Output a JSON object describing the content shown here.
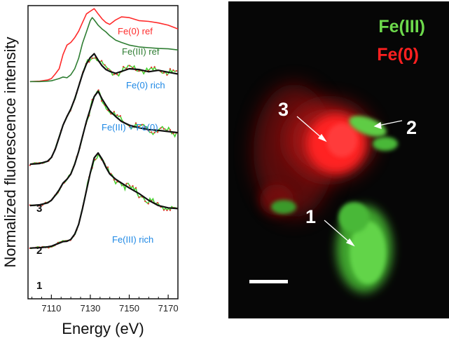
{
  "chart_data": [
    {
      "type": "line",
      "xlabel": "Energy (eV)",
      "ylabel": "Normalized fluorescence intensity",
      "xlim": [
        7098,
        7175
      ],
      "x_ticks": [
        7110,
        7130,
        7150,
        7170
      ],
      "x_tick_labels": [
        "7110",
        "7130",
        "7150",
        "7170"
      ],
      "ylim": [
        0,
        7.8
      ],
      "grid": false,
      "series": [
        {
          "name": "Fe(0) ref",
          "color": "#ff2a2a",
          "x": [
            7099,
            7104,
            7108,
            7110,
            7112,
            7114,
            7116,
            7118,
            7120,
            7122,
            7124,
            7126,
            7128,
            7130,
            7132,
            7134,
            7136,
            7138,
            7140,
            7143,
            7146,
            7150,
            7155,
            7160,
            7165,
            7170,
            7175
          ],
          "y": [
            5.78,
            5.79,
            5.82,
            5.86,
            5.98,
            6.12,
            6.5,
            6.75,
            6.82,
            6.95,
            7.12,
            7.35,
            7.58,
            7.65,
            7.72,
            7.58,
            7.45,
            7.35,
            7.3,
            7.42,
            7.5,
            7.48,
            7.4,
            7.38,
            7.34,
            7.28,
            7.18
          ]
        },
        {
          "name": "Fe(III) ref",
          "color": "#2e7d32",
          "x": [
            7099,
            7104,
            7108,
            7110,
            7112,
            7114,
            7116,
            7118,
            7120,
            7122,
            7124,
            7126,
            7128,
            7130,
            7131,
            7132,
            7134,
            7136,
            7138,
            7140,
            7143,
            7146,
            7150,
            7155,
            7160,
            7165,
            7170,
            7175
          ],
          "y": [
            5.78,
            5.78,
            5.79,
            5.8,
            5.83,
            5.86,
            5.9,
            5.88,
            5.96,
            6.12,
            6.4,
            6.8,
            7.1,
            7.4,
            7.48,
            7.42,
            7.28,
            7.18,
            7.1,
            7.0,
            6.88,
            6.82,
            6.75,
            6.7,
            6.68,
            6.66,
            6.65,
            6.62
          ]
        },
        {
          "name": "3",
          "label": "Fe(0) rich",
          "color": "#111111",
          "x": [
            7099,
            7104,
            7108,
            7110,
            7112,
            7114,
            7116,
            7118,
            7120,
            7122,
            7124,
            7126,
            7128,
            7130,
            7132,
            7134,
            7136,
            7138,
            7140,
            7143,
            7146,
            7150,
            7155,
            7160,
            7165,
            7170,
            7175
          ],
          "y": [
            3.58,
            3.6,
            3.66,
            3.76,
            3.98,
            4.3,
            4.62,
            4.85,
            5.05,
            5.32,
            5.65,
            5.98,
            6.25,
            6.42,
            6.52,
            6.35,
            6.2,
            6.1,
            6.05,
            6.0,
            6.05,
            6.12,
            6.1,
            6.04,
            6.08,
            6.03,
            5.98
          ]
        },
        {
          "name": "2",
          "label": "Fe(III) + Fe(0)",
          "color": "#111111",
          "x": [
            7099,
            7104,
            7108,
            7110,
            7112,
            7114,
            7116,
            7118,
            7120,
            7122,
            7124,
            7126,
            7128,
            7130,
            7132,
            7134,
            7136,
            7138,
            7140,
            7143,
            7146,
            7150,
            7155,
            7160,
            7165,
            7170,
            7175
          ],
          "y": [
            2.48,
            2.5,
            2.55,
            2.62,
            2.75,
            2.9,
            3.08,
            3.18,
            3.32,
            3.58,
            3.92,
            4.32,
            4.72,
            5.05,
            5.38,
            5.52,
            5.32,
            5.15,
            5.0,
            4.85,
            4.72,
            4.62,
            4.55,
            4.5,
            4.48,
            4.45,
            4.42
          ]
        },
        {
          "name": "1",
          "label": "Fe(III) rich",
          "color": "#111111",
          "x": [
            7099,
            7104,
            7108,
            7110,
            7112,
            7114,
            7116,
            7118,
            7120,
            7122,
            7124,
            7126,
            7128,
            7130,
            7132,
            7134,
            7136,
            7138,
            7140,
            7143,
            7146,
            7150,
            7155,
            7160,
            7165,
            7170,
            7175
          ],
          "y": [
            1.35,
            1.36,
            1.38,
            1.4,
            1.44,
            1.48,
            1.52,
            1.53,
            1.58,
            1.72,
            1.98,
            2.4,
            2.88,
            3.35,
            3.75,
            3.88,
            3.72,
            3.5,
            3.32,
            3.18,
            3.08,
            2.95,
            2.8,
            2.62,
            2.48,
            2.42,
            2.4
          ]
        }
      ]
    },
    {
      "type": "heatmap",
      "title": "",
      "legend": [
        {
          "label": "Fe(III)",
          "color": "#6dd94c"
        },
        {
          "label": "Fe(0)",
          "color": "#ff2020"
        }
      ],
      "point_labels": [
        "1",
        "2",
        "3"
      ],
      "scale_bar": true
    }
  ]
}
